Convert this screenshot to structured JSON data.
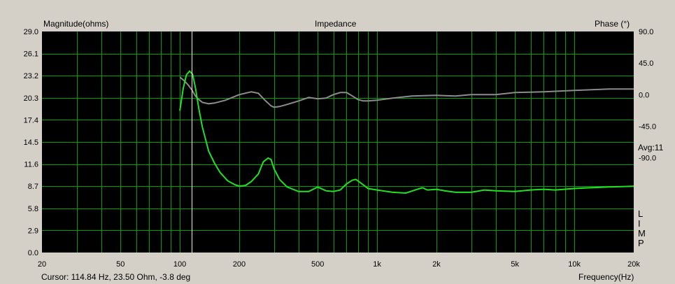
{
  "header": {
    "left_label": "Magnitude(ohms)",
    "center_label": "Impedance",
    "right_label": "Phase (°)"
  },
  "footer": {
    "cursor_text": "Cursor: 114.84 Hz, 23.50 Ohm, -3.8 deg",
    "frequency_label": "Frequency(Hz)"
  },
  "side": {
    "avg_label": "Avg:11",
    "limp_letters": [
      "L",
      "I",
      "M",
      "P"
    ]
  },
  "colors": {
    "plot_bg": "#000000",
    "grid": "#00a000",
    "magnitude": "#22e022",
    "phase": "#8c8c8c",
    "cursor": "#f0f0d8",
    "window_bg": "#d4d0c8"
  },
  "chart_data": {
    "type": "line",
    "title": "Impedance",
    "xlabel": "Frequency(Hz)",
    "ylabel": "Magnitude(ohms)",
    "y2label": "Phase (°)",
    "xscale": "log",
    "xlim": [
      20,
      20000
    ],
    "ylim": [
      0,
      29
    ],
    "y2lim": [
      -225,
      90
    ],
    "grid": true,
    "x_ticks": [
      20,
      50,
      100,
      200,
      500,
      1000,
      2000,
      5000,
      10000,
      20000
    ],
    "x_tick_labels": [
      "20",
      "50",
      "100",
      "200",
      "500",
      "1k",
      "2k",
      "5k",
      "10k",
      "20k"
    ],
    "y_ticks": [
      0.0,
      2.9,
      5.8,
      8.7,
      11.6,
      14.5,
      17.4,
      20.3,
      23.2,
      26.1,
      29.0
    ],
    "y_tick_labels": [
      "0.0",
      "2.9",
      "5.8",
      "8.7",
      "11.6",
      "14.5",
      "17.4",
      "20.3",
      "23.2",
      "26.1",
      "29.0"
    ],
    "y2_ticks": [
      90,
      45,
      0,
      -45,
      -90
    ],
    "y2_tick_labels": [
      "90.0",
      "45.0",
      "0.0",
      "-45.0",
      "-90.0"
    ],
    "cursor_x": 114.84,
    "series": [
      {
        "name": "Magnitude",
        "axis": "left",
        "x": [
          100,
          104,
          108,
          112,
          116,
          120,
          125,
          130,
          140,
          150,
          160,
          175,
          190,
          200,
          215,
          230,
          250,
          265,
          280,
          290,
          300,
          320,
          350,
          400,
          450,
          500,
          550,
          600,
          650,
          700,
          750,
          780,
          820,
          900,
          1000,
          1200,
          1400,
          1600,
          1700,
          1800,
          2000,
          2200,
          2500,
          3000,
          3500,
          4000,
          5000,
          6000,
          7000,
          8000,
          10000,
          12000,
          15000,
          20000
        ],
        "values": [
          18.6,
          21.5,
          23.3,
          23.8,
          23.4,
          21.6,
          18.8,
          16.5,
          13.3,
          11.7,
          10.5,
          9.4,
          8.9,
          8.7,
          8.8,
          9.3,
          10.3,
          11.9,
          12.4,
          12.2,
          11.0,
          9.6,
          8.6,
          8.0,
          8.0,
          8.6,
          8.1,
          8.0,
          8.2,
          9.0,
          9.5,
          9.6,
          9.2,
          8.4,
          8.2,
          7.9,
          7.8,
          8.3,
          8.5,
          8.2,
          8.3,
          8.1,
          7.9,
          7.9,
          8.2,
          8.1,
          8.0,
          8.2,
          8.3,
          8.2,
          8.4,
          8.5,
          8.6,
          8.7
        ]
      },
      {
        "name": "Phase",
        "axis": "right",
        "x": [
          100,
          105,
          110,
          115,
          120,
          125,
          130,
          140,
          150,
          170,
          200,
          230,
          250,
          270,
          290,
          300,
          320,
          350,
          400,
          450,
          500,
          550,
          600,
          650,
          700,
          750,
          800,
          850,
          900,
          1000,
          1200,
          1500,
          2000,
          2500,
          3000,
          4000,
          5000,
          7000,
          10000,
          15000,
          20000
        ],
        "values": [
          25,
          20,
          14,
          7,
          -2,
          -7,
          -11,
          -13,
          -12,
          -8,
          0,
          4,
          2,
          -8,
          -16,
          -18,
          -17,
          -14,
          -9,
          -4,
          -6,
          -5,
          0,
          3,
          3,
          -2,
          -7,
          -9,
          -9,
          -8,
          -5,
          -2,
          -1,
          -2,
          0,
          0,
          3,
          4,
          6,
          8,
          8
        ]
      }
    ]
  }
}
